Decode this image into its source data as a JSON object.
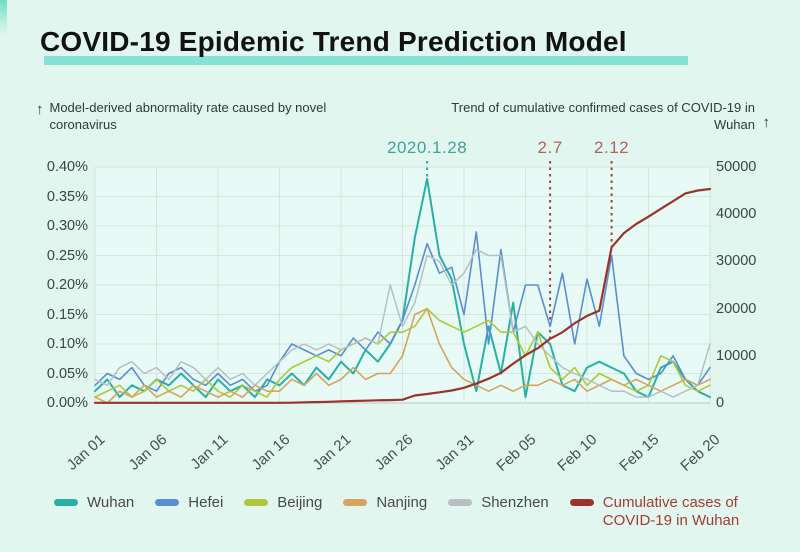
{
  "page": {
    "background": "#e2f6f0"
  },
  "title": {
    "text": "COVID-19 Epidemic Trend Prediction Model",
    "underline_color": "#84e3d5"
  },
  "axis_annotations": {
    "left": {
      "arrow": "↑",
      "text": "Model-derived abnormality rate caused by novel coronavirus"
    },
    "right": {
      "arrow": "↑",
      "text": "Trend of cumulative confirmed cases of COVID-19 in Wuhan"
    }
  },
  "chart_data": {
    "type": "line",
    "grid": true,
    "legend_position": "bottom",
    "x": [
      "Jan 01",
      "Jan 02",
      "Jan 03",
      "Jan 04",
      "Jan 05",
      "Jan 06",
      "Jan 07",
      "Jan 08",
      "Jan 09",
      "Jan 10",
      "Jan 11",
      "Jan 12",
      "Jan 13",
      "Jan 14",
      "Jan 15",
      "Jan 16",
      "Jan 17",
      "Jan 18",
      "Jan 19",
      "Jan 20",
      "Jan 21",
      "Jan 22",
      "Jan 23",
      "Jan 24",
      "Jan 25",
      "Jan 26",
      "Jan 27",
      "Jan 28",
      "Jan 29",
      "Jan 30",
      "Jan 31",
      "Feb 01",
      "Feb 02",
      "Feb 03",
      "Feb 04",
      "Feb 05",
      "Feb 06",
      "Feb 07",
      "Feb 08",
      "Feb 09",
      "Feb 10",
      "Feb 11",
      "Feb 12",
      "Feb 13",
      "Feb 14",
      "Feb 15",
      "Feb 16",
      "Feb 17",
      "Feb 18",
      "Feb 19",
      "Feb 20"
    ],
    "x_tick_labels": [
      "Jan 01",
      "Jan 06",
      "Jan 11",
      "Jan 16",
      "Jan 21",
      "Jan 26",
      "Jan 31",
      "Feb 05",
      "Feb 10",
      "Feb 15",
      "Feb 20"
    ],
    "left_axis": {
      "title": "Model-derived abnormality rate (%)",
      "min": 0,
      "max": 0.4,
      "tick_values": [
        0.4,
        0.35,
        0.3,
        0.25,
        0.2,
        0.15,
        0.1,
        0.05,
        0
      ],
      "tick_labels": [
        "0.40%",
        "0.35%",
        "0.30%",
        "0.25%",
        "0.20%",
        "0.15%",
        "0.10%",
        "0.05%",
        "0.00%"
      ]
    },
    "right_axis": {
      "title": "Cumulative confirmed cases",
      "min": 0,
      "max": 50000,
      "tick_values": [
        50000,
        40000,
        30000,
        20000,
        10000,
        0
      ],
      "tick_labels": [
        "50000",
        "40000",
        "30000",
        "20000",
        "10000",
        "0"
      ]
    },
    "series": [
      {
        "name": "Wuhan",
        "color": "#29b0a5",
        "axis": "left",
        "width": 2,
        "values": [
          0.02,
          0.04,
          0.01,
          0.03,
          0.02,
          0.04,
          0.03,
          0.05,
          0.03,
          0.01,
          0.04,
          0.02,
          0.03,
          0.01,
          0.04,
          0.03,
          0.05,
          0.03,
          0.06,
          0.04,
          0.07,
          0.05,
          0.09,
          0.07,
          0.1,
          0.14,
          0.28,
          0.38,
          0.25,
          0.21,
          0.1,
          0.02,
          0.13,
          0.05,
          0.17,
          0.01,
          0.12,
          0.1,
          0.03,
          0.02,
          0.06,
          0.07,
          0.06,
          0.05,
          0.02,
          0.01,
          0.06,
          0.07,
          0.04,
          0.02,
          0.01
        ]
      },
      {
        "name": "Hefei",
        "color": "#5a8ed2",
        "axis": "left",
        "width": 1.6,
        "values": [
          0.03,
          0.05,
          0.04,
          0.06,
          0.03,
          0.02,
          0.05,
          0.06,
          0.04,
          0.03,
          0.05,
          0.03,
          0.04,
          0.02,
          0.03,
          0.07,
          0.1,
          0.09,
          0.08,
          0.09,
          0.08,
          0.11,
          0.09,
          0.12,
          0.1,
          0.14,
          0.2,
          0.27,
          0.22,
          0.23,
          0.15,
          0.29,
          0.1,
          0.26,
          0.12,
          0.2,
          0.2,
          0.13,
          0.22,
          0.1,
          0.21,
          0.13,
          0.25,
          0.08,
          0.05,
          0.04,
          0.05,
          0.08,
          0.04,
          0.03,
          0.06
        ]
      },
      {
        "name": "Beijing",
        "color": "#aec935",
        "axis": "left",
        "width": 1.6,
        "values": [
          0.01,
          0.02,
          0.03,
          0.01,
          0.02,
          0.04,
          0.02,
          0.03,
          0.02,
          0.04,
          0.02,
          0.01,
          0.03,
          0.02,
          0.01,
          0.04,
          0.06,
          0.07,
          0.08,
          0.07,
          0.09,
          0.1,
          0.11,
          0.1,
          0.12,
          0.12,
          0.13,
          0.16,
          0.14,
          0.13,
          0.12,
          0.13,
          0.14,
          0.12,
          0.12,
          0.08,
          0.12,
          0.06,
          0.04,
          0.06,
          0.03,
          0.05,
          0.04,
          0.03,
          0.02,
          0.03,
          0.08,
          0.07,
          0.03,
          0.02,
          0.03
        ]
      },
      {
        "name": "Nanjing",
        "color": "#d8a35f",
        "axis": "left",
        "width": 1.6,
        "values": [
          0.01,
          0.0,
          0.02,
          0.01,
          0.03,
          0.01,
          0.02,
          0.01,
          0.03,
          0.02,
          0.01,
          0.02,
          0.01,
          0.03,
          0.02,
          0.02,
          0.04,
          0.03,
          0.05,
          0.03,
          0.04,
          0.06,
          0.04,
          0.05,
          0.05,
          0.08,
          0.15,
          0.16,
          0.1,
          0.06,
          0.04,
          0.03,
          0.02,
          0.03,
          0.02,
          0.03,
          0.03,
          0.04,
          0.03,
          0.04,
          0.02,
          0.03,
          0.04,
          0.03,
          0.04,
          0.03,
          0.02,
          0.03,
          0.04,
          0.03,
          0.04
        ]
      },
      {
        "name": "Shenzhen",
        "color": "#b8bfc2",
        "axis": "left",
        "width": 1.5,
        "values": [
          0.04,
          0.03,
          0.06,
          0.07,
          0.05,
          0.06,
          0.04,
          0.07,
          0.06,
          0.04,
          0.06,
          0.04,
          0.05,
          0.03,
          0.05,
          0.07,
          0.09,
          0.1,
          0.09,
          0.1,
          0.09,
          0.1,
          0.11,
          0.1,
          0.2,
          0.13,
          0.17,
          0.25,
          0.24,
          0.2,
          0.22,
          0.26,
          0.25,
          0.25,
          0.12,
          0.13,
          0.1,
          0.08,
          0.06,
          0.05,
          0.04,
          0.03,
          0.02,
          0.02,
          0.01,
          0.01,
          0.02,
          0.01,
          0.02,
          0.03,
          0.1
        ]
      },
      {
        "name": "Cumulative cases of COVID-19 in Wuhan",
        "color": "#9c332b",
        "axis": "right",
        "width": 2.2,
        "values": [
          41,
          41,
          43,
          44,
          44,
          45,
          45,
          45,
          45,
          41,
          41,
          41,
          41,
          41,
          41,
          45,
          62,
          121,
          198,
          258,
          363,
          425,
          495,
          572,
          618,
          698,
          1590,
          1905,
          2261,
          2639,
          3215,
          4109,
          5142,
          6384,
          8351,
          10117,
          11618,
          13603,
          14982,
          16902,
          18454,
          19558,
          32994,
          35991,
          37914,
          39462,
          41152,
          42752,
          44412,
          45027,
          45346
        ]
      }
    ],
    "annotations": [
      {
        "label": "2020.1.28",
        "x": "Jan 28",
        "color": "#45a098",
        "line_color": "#35a89d",
        "axis": "left",
        "line_to_value": 0.38
      },
      {
        "label": "2.7",
        "x": "Feb 07",
        "color": "#b2625b",
        "line_color": "#9c4038",
        "axis": "right",
        "line_to_value": 13603
      },
      {
        "label": "2.12",
        "x": "Feb 12",
        "color": "#b2625b",
        "line_color": "#9c4038",
        "axis": "right",
        "line_to_value": 32994
      }
    ]
  },
  "legend": {
    "items": [
      {
        "label": "Wuhan",
        "color": "#29b0a5",
        "text_color": "#4a4a4a"
      },
      {
        "label": "Hefei",
        "color": "#5a8ed2",
        "text_color": "#4a4a4a"
      },
      {
        "label": "Beijing",
        "color": "#aec935",
        "text_color": "#4a4a4a"
      },
      {
        "label": "Nanjing",
        "color": "#d8a35f",
        "text_color": "#4a4a4a"
      },
      {
        "label": "Shenzhen",
        "color": "#b8bfc2",
        "text_color": "#4a4a4a"
      },
      {
        "label": "Cumulative cases of COVID-19 in Wuhan",
        "color": "#9c332b",
        "text_color": "#a33c32"
      }
    ]
  }
}
